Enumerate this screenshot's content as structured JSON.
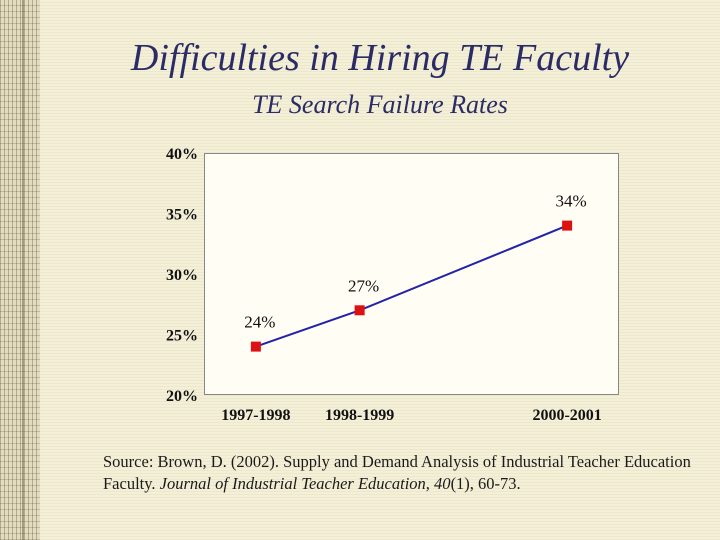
{
  "slide": {
    "title": "Difficulties in Hiring TE Faculty",
    "subtitle": "TE Search Failure Rates"
  },
  "chart_data": {
    "type": "line",
    "title": "TE Search Failure Rates",
    "categories": [
      "1997-1998",
      "1998-1999",
      "2000-2001"
    ],
    "x": [
      1997.5,
      1998.5,
      2000.5
    ],
    "series": [
      {
        "values": [
          24,
          27,
          34
        ],
        "labels": [
          "24%",
          "27%",
          "34%"
        ],
        "color": "#2222aa",
        "marker_color": "#dd1111"
      }
    ],
    "y_ticks": [
      "20%",
      "25%",
      "30%",
      "35%",
      "40%"
    ],
    "ylim": [
      20,
      40
    ],
    "xlabel": "",
    "ylabel": "",
    "grid": false
  },
  "source": {
    "prefix": "Source: Brown, D. (2002). Supply and Demand Analysis of Industrial Teacher Education Faculty. ",
    "journal": "Journal of Industrial Teacher Education, 40",
    "suffix": "(1), 60-73."
  }
}
